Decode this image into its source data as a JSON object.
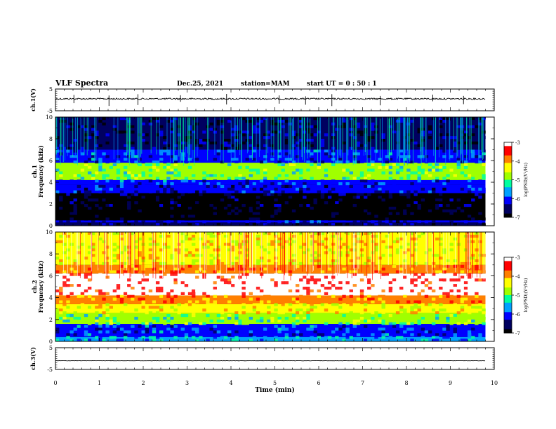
{
  "header": {
    "title": "VLF Spectra",
    "date": "Dec.25, 2021",
    "station": "station=MAM",
    "start": "start  UT =   0 : 50 : 1"
  },
  "chart_data": [
    {
      "type": "line",
      "panel": "ch1-waveform",
      "ylabel": "ch.1(V)",
      "ylim": [
        -5,
        5
      ],
      "yticks": [
        "5",
        "-5"
      ],
      "baseline_value": 0.5,
      "color": "#000000"
    },
    {
      "type": "heatmap",
      "panel": "ch1-spectrogram",
      "ylabel": "ch.1\nFrequency (kHz)",
      "ylim": [
        0,
        10
      ],
      "yticks": [
        "0",
        "2",
        "4",
        "6",
        "8",
        "10"
      ],
      "x": [
        0,
        9.8
      ],
      "bands_log_psd": [
        {
          "f": [
            0.0,
            0.3
          ],
          "v": -6.6
        },
        {
          "f": [
            0.3,
            0.5
          ],
          "v": -6.3
        },
        {
          "f": [
            0.5,
            1.8
          ],
          "v": -7.0
        },
        {
          "f": [
            1.8,
            3.0
          ],
          "v": -6.8
        },
        {
          "f": [
            3.0,
            3.8
          ],
          "v": -6.3
        },
        {
          "f": [
            3.8,
            4.2
          ],
          "v": -6.0
        },
        {
          "f": [
            4.2,
            5.8
          ],
          "v": -5.0
        },
        {
          "f": [
            5.8,
            7.0
          ],
          "v": -6.0
        },
        {
          "f": [
            7.0,
            10.0
          ],
          "v": -6.6
        }
      ],
      "colorbar": {
        "label": "log(PSD)(V²/Hz)",
        "ticks": [
          "-3",
          "-4",
          "-5",
          "-6",
          "-7"
        ],
        "range": [
          -7,
          -3
        ]
      }
    },
    {
      "type": "heatmap",
      "panel": "ch2-spectrogram",
      "ylabel": "ch.2\nFrequency (kHz)",
      "ylim": [
        0,
        10
      ],
      "yticks": [
        "0",
        "2",
        "4",
        "6",
        "8",
        "10"
      ],
      "x": [
        0,
        9.8
      ],
      "bands_log_psd": [
        {
          "f": [
            0.0,
            0.4
          ],
          "v": -5.6
        },
        {
          "f": [
            0.4,
            1.6
          ],
          "v": -6.0
        },
        {
          "f": [
            1.6,
            2.6
          ],
          "v": -5.0
        },
        {
          "f": [
            2.6,
            3.4
          ],
          "v": -4.4
        },
        {
          "f": [
            3.4,
            4.2
          ],
          "v": -3.9
        },
        {
          "f": [
            4.2,
            6.2
          ],
          "v": -3.2
        },
        {
          "f": [
            6.2,
            7.0
          ],
          "v": -3.9
        },
        {
          "f": [
            7.0,
            10.0
          ],
          "v": -4.4
        }
      ],
      "colorbar": {
        "label": "log(PSD)(V²/Hz)",
        "ticks": [
          "-3",
          "-4",
          "-5",
          "-6",
          "-7"
        ],
        "range": [
          -7,
          -3
        ]
      }
    },
    {
      "type": "line",
      "panel": "ch3-waveform",
      "ylabel": "ch.3(V)",
      "ylim": [
        -5,
        5
      ],
      "yticks": [
        "5",
        "-5"
      ],
      "baseline_value": -1.0,
      "color": "#000000"
    }
  ],
  "xaxis": {
    "label": "Time (min)",
    "range": [
      0,
      10
    ],
    "ticks": [
      "0",
      "1",
      "2",
      "3",
      "4",
      "5",
      "6",
      "7",
      "8",
      "9",
      "10"
    ]
  },
  "colormap": [
    "#000000",
    "#000060",
    "#0000ff",
    "#00a0ff",
    "#00ffa0",
    "#a0ff00",
    "#ffff00",
    "#ff8000",
    "#ff0000",
    "#ffffff"
  ]
}
